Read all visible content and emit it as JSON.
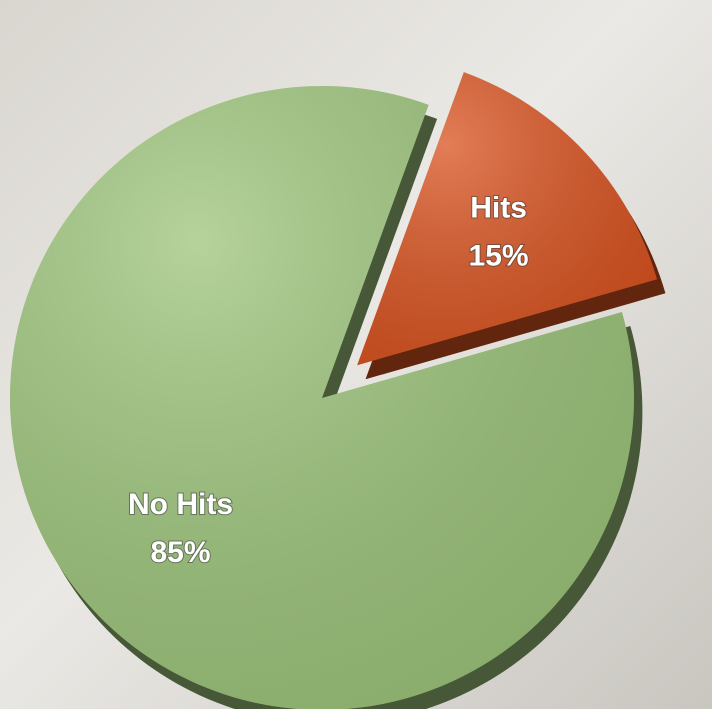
{
  "chart_data": {
    "type": "pie",
    "categories": [
      "Hits",
      "No Hits"
    ],
    "values": [
      15,
      85
    ],
    "value_labels": [
      "15%",
      "85%"
    ],
    "colors": [
      "#d9521f",
      "#9cc47a"
    ]
  }
}
